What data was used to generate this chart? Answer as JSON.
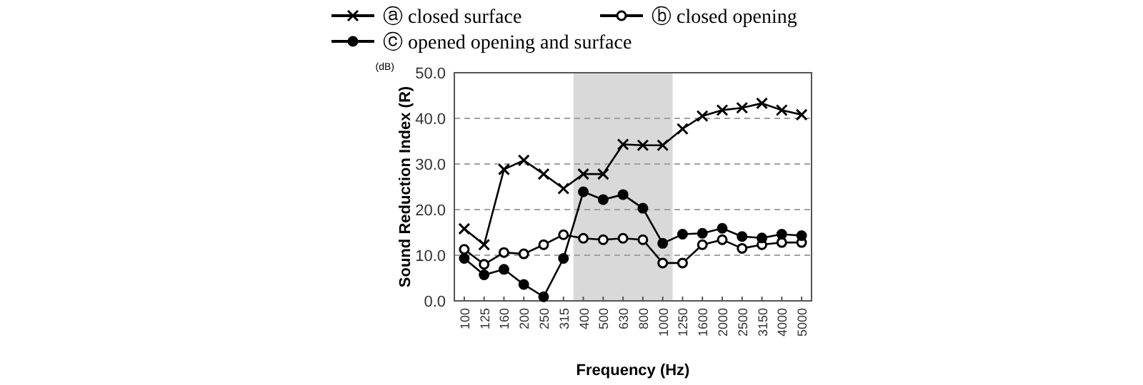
{
  "chart_data": {
    "type": "line",
    "xlabel": "Frequency (Hz)",
    "ylabel": "Sound Reduction Index (R)",
    "annotations": [
      "(dB)"
    ],
    "categories": [
      "100",
      "125",
      "160",
      "200",
      "250",
      "315",
      "400",
      "500",
      "630",
      "800",
      "1000",
      "1250",
      "1600",
      "2000",
      "2500",
      "3150",
      "4000",
      "5000"
    ],
    "series": [
      {
        "name": "ⓐ closed surface",
        "color": "#000000",
        "marker": "cross",
        "values": [
          15.8,
          12.3,
          28.8,
          30.8,
          27.8,
          24.6,
          27.8,
          27.8,
          34.3,
          34.1,
          34.1,
          37.7,
          40.5,
          41.8,
          42.3,
          43.3,
          41.8,
          40.8
        ]
      },
      {
        "name": "ⓑ closed opening",
        "color": "#000000",
        "marker": "circle",
        "values": [
          11.3,
          8.0,
          10.6,
          10.3,
          12.3,
          14.5,
          13.7,
          13.4,
          13.7,
          13.4,
          8.3,
          8.3,
          12.3,
          13.4,
          11.5,
          12.3,
          12.8,
          12.8
        ]
      },
      {
        "name": "ⓒ opened opening and surface",
        "color": "#000000",
        "marker": "circle",
        "values": [
          9.3,
          5.7,
          6.9,
          3.6,
          0.9,
          9.3,
          23.9,
          22.2,
          23.3,
          20.3,
          12.6,
          14.6,
          14.8,
          15.9,
          14.1,
          13.8,
          14.6,
          14.3
        ]
      }
    ],
    "ylim": [
      0,
      50
    ],
    "yticks": [
      {
        "value": 0,
        "label": "0.0"
      },
      {
        "value": 10,
        "label": "10.0"
      },
      {
        "value": 20,
        "label": "20.0"
      },
      {
        "value": 30,
        "label": "30.0"
      },
      {
        "value": 40,
        "label": "40.0"
      },
      {
        "value": 50,
        "label": "50.0"
      }
    ],
    "bands": [
      {
        "axis": "x",
        "from": "400",
        "to": "1000",
        "color": "#d9d9d9"
      }
    ],
    "grid": "y",
    "legend": "top",
    "line_style": "solid"
  }
}
